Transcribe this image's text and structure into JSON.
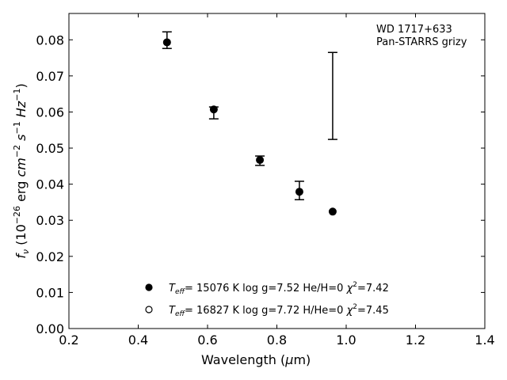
{
  "chart_data": {
    "type": "scatter",
    "title": "",
    "xlabel": "Wavelength (μm)",
    "ylabel": "f_ν (10^-26 erg cm^-2 s^-1 Hz^-1)",
    "xlim": [
      0.2,
      1.4
    ],
    "ylim": [
      0.0,
      0.0873
    ],
    "xticks": [
      0.2,
      0.4,
      0.6,
      0.8,
      1.0,
      1.2,
      1.4
    ],
    "xtick_labels": [
      "0.2",
      "0.4",
      "0.6",
      "0.8",
      "1.0",
      "1.2",
      "1.4"
    ],
    "yticks": [
      0,
      0.01,
      0.02,
      0.03,
      0.04,
      0.05,
      0.06,
      0.07,
      0.08
    ],
    "ytick_labels": [
      "0.00",
      "0.01",
      "0.02",
      "0.03",
      "0.04",
      "0.05",
      "0.06",
      "0.07",
      "0.08"
    ],
    "grid": false,
    "annotation": [
      "WD 1717+633",
      "Pan-STARRS grizy"
    ],
    "observed_errorbars": [
      {
        "x": 0.483,
        "low": 0.0776,
        "high": 0.0822
      },
      {
        "x": 0.618,
        "low": 0.0581,
        "high": 0.0614
      },
      {
        "x": 0.751,
        "low": 0.0452,
        "high": 0.0478
      },
      {
        "x": 0.865,
        "low": 0.0357,
        "high": 0.0408
      },
      {
        "x": 0.961,
        "low": 0.0524,
        "high": 0.0765
      }
    ],
    "series": [
      {
        "name": "T_eff= 15076 K  log g=7.52  He/H=0  χ²=7.42",
        "marker": "filled",
        "x": [
          0.483,
          0.618,
          0.751,
          0.865,
          0.961
        ],
        "y": [
          0.0793,
          0.0607,
          0.0467,
          0.0379,
          0.0324
        ]
      },
      {
        "name": "T_eff= 16827 K  log g=7.72  H/He=0  χ²=7.45",
        "marker": "open",
        "x": [],
        "y": []
      }
    ],
    "legend": {
      "placement": "lower-center",
      "entries": [
        {
          "teff": "15076 K",
          "logg": "log g=7.52",
          "comp": "He/H=0",
          "chi2": "=7.42"
        },
        {
          "teff": "16827 K",
          "logg": "log g=7.72",
          "comp": "H/He=0",
          "chi2": "=7.45"
        }
      ]
    }
  }
}
